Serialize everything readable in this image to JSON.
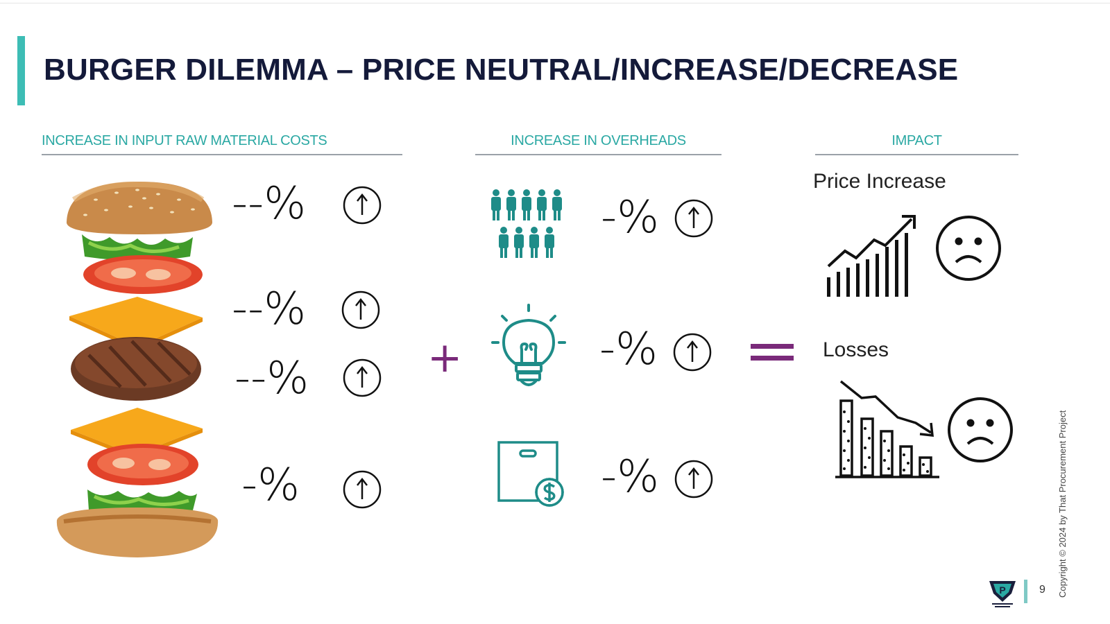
{
  "slide": {
    "title": "BURGER DILEMMA – PRICE NEUTRAL/INCREASE/DECREASE",
    "page_number": "9",
    "copyright": "Copyright © 2024 by That Procurement Project",
    "colors": {
      "accent": "#3dbdb5",
      "title": "#141a3a",
      "teal_icon": "#1e8c88",
      "operator": "#7a2a7a"
    }
  },
  "columns": {
    "raw_materials": {
      "heading": "INCREASE IN INPUT RAW MATERIAL COSTS",
      "items": [
        {
          "icon": "bun-top-lettuce-tomato-image",
          "change": "--%",
          "arrow": "up-arrow-circle-icon"
        },
        {
          "icon": "cheese-image",
          "change": "--%",
          "arrow": "up-arrow-circle-icon"
        },
        {
          "icon": "patty-image",
          "change": "--%",
          "arrow": "up-arrow-circle-icon"
        },
        {
          "icon": "bun-bottom-image",
          "change": "-%",
          "arrow": "up-arrow-circle-icon"
        }
      ]
    },
    "overheads": {
      "heading": "INCREASE IN OVERHEADS",
      "items": [
        {
          "icon": "people-group-icon",
          "change": "-%",
          "arrow": "up-arrow-circle-icon"
        },
        {
          "icon": "lightbulb-icon",
          "change": "-%",
          "arrow": "up-arrow-circle-icon"
        },
        {
          "icon": "package-dollar-icon",
          "change": "-%",
          "arrow": "up-arrow-circle-icon"
        }
      ]
    },
    "impact": {
      "heading": "IMPACT",
      "items": [
        {
          "label": "Price Increase",
          "icon": "rising-chart-icon",
          "face": "sad-face-icon"
        },
        {
          "label": "Losses",
          "icon": "falling-chart-icon",
          "face": "sad-face-icon"
        }
      ]
    }
  },
  "operators": {
    "plus": "+",
    "equals": "="
  }
}
